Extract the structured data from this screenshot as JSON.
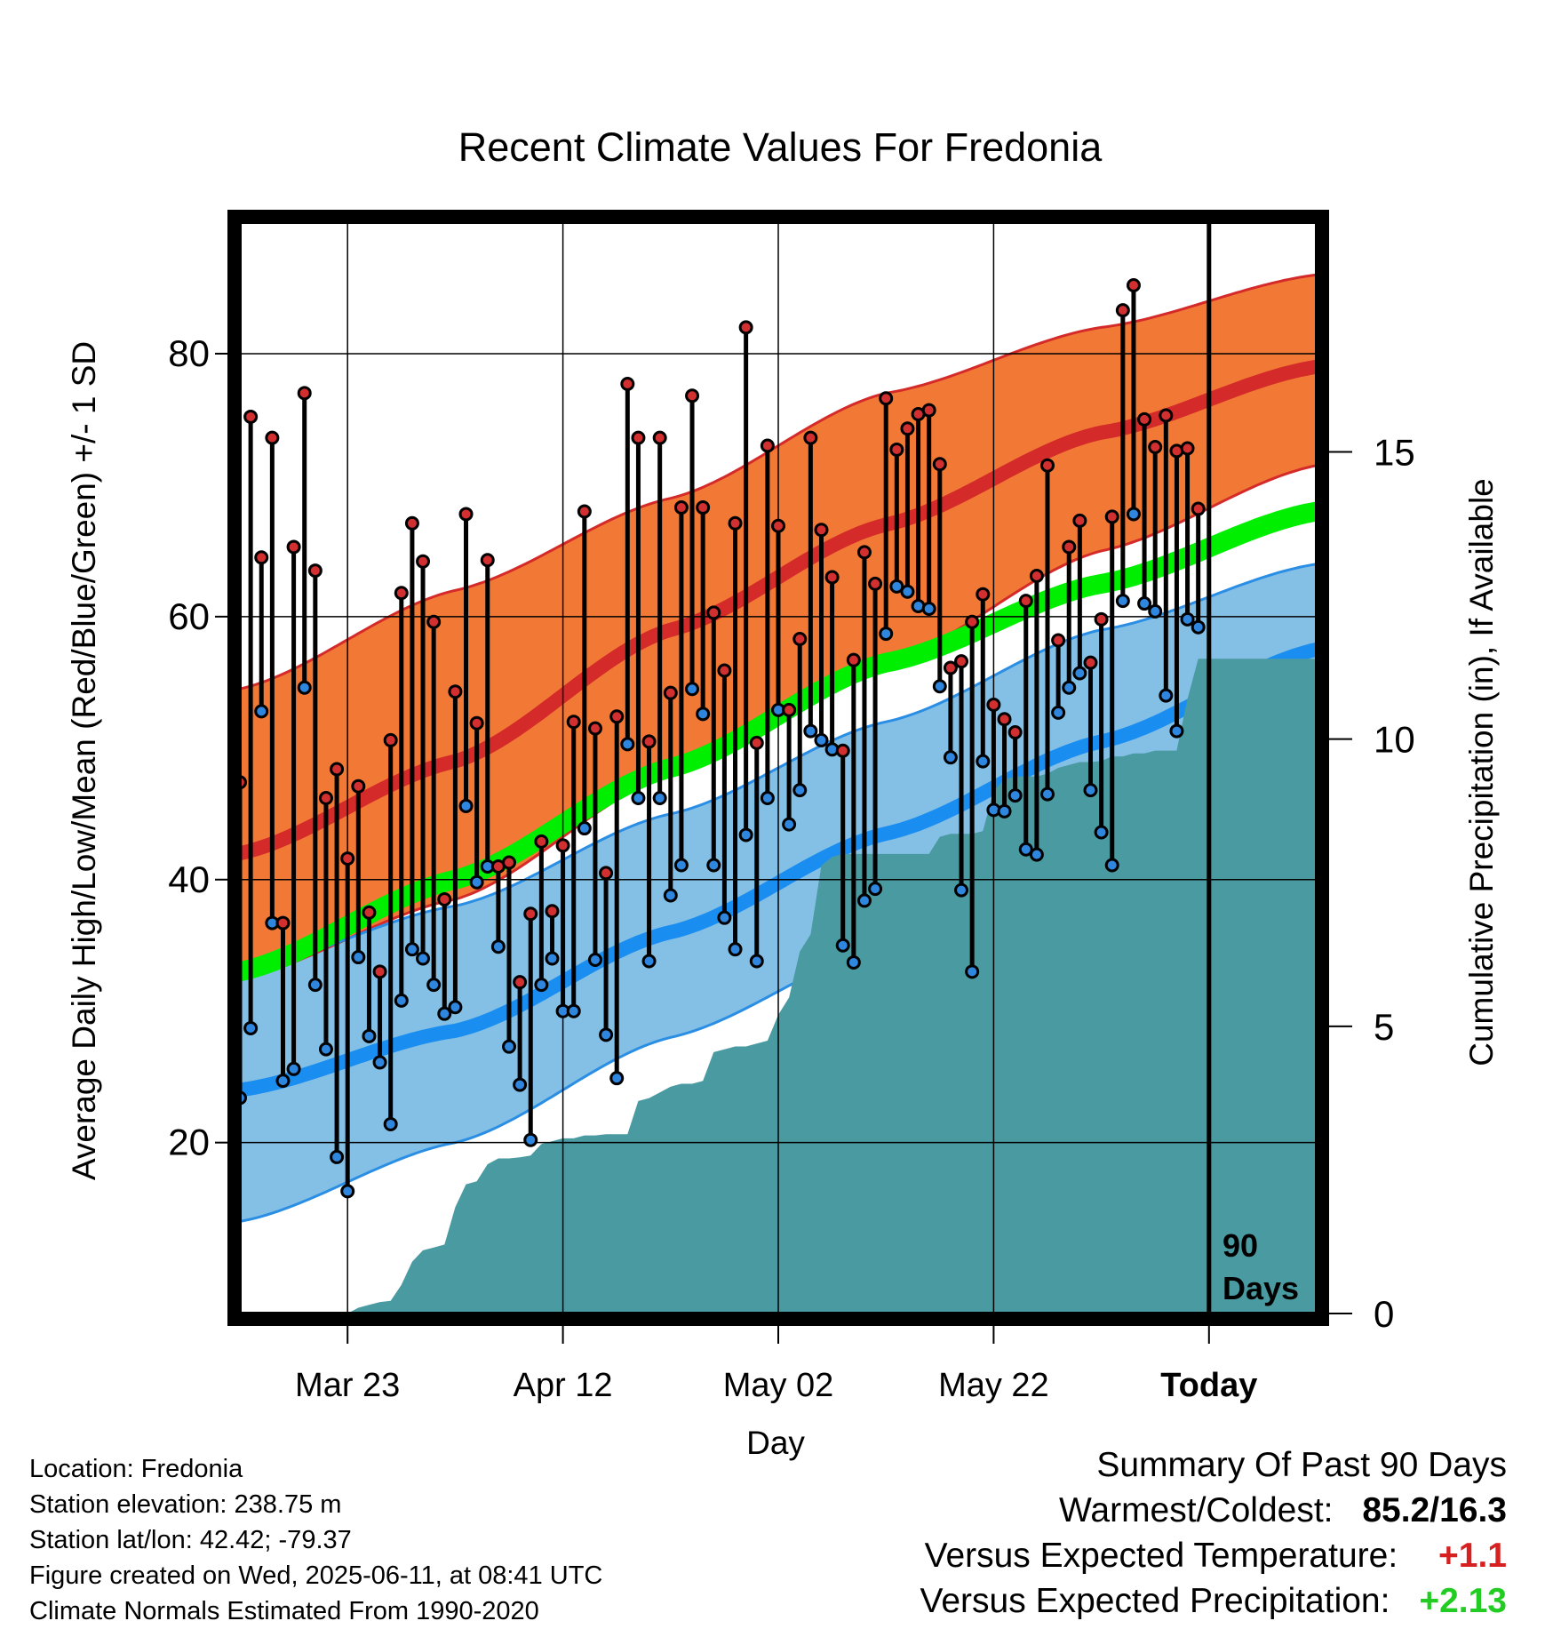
{
  "title": "Recent Climate Values For Fredonia",
  "y_label_left": "Average Daily High/Low/Mean (Red/Blue/Green) +/- 1 SD",
  "y_label_right": "Cumulative Precipitation (in), If Available",
  "x_label": "Day",
  "today_label": [
    "90",
    "Days"
  ],
  "colors": {
    "high_band": "#f27935",
    "high_band_edge": "#d52a2a",
    "high_mean": "#d42a2a",
    "low_band": "#84c0e6",
    "low_band_edge": "#2a8ee4",
    "low_mean": "#1a8ef0",
    "mean": "#00ee00",
    "overlap": "#9b1212",
    "precip": "#4a9aa2",
    "high_dot": "#d23030",
    "low_dot": "#2e86de"
  },
  "info": {
    "location": "Location: Fredonia",
    "elevation": "Station elevation: 238.75 m",
    "latlon": "Station lat/lon: 42.42; -79.37",
    "created": "Figure created on Wed, 2025-06-11, at 08:41 UTC",
    "normals": "Climate Normals Estimated From 1990-2020"
  },
  "summary": {
    "heading": "Summary Of Past 90 Days",
    "warm_cold_label": "Warmest/Coldest:",
    "warm_cold_value": "85.2/16.3",
    "temp_label": "Versus Expected Temperature:",
    "temp_value": "+1.1",
    "precip_label": "Versus Expected Precipitation:",
    "precip_value": "+2.13"
  },
  "chart_data": {
    "type": "line",
    "x_domain": [
      1,
      101
    ],
    "today_day": 91,
    "ylim_left": [
      7,
      90
    ],
    "ylim_right": [
      0,
      19
    ],
    "left_ticks": [
      20,
      40,
      60,
      80
    ],
    "right_ticks": [
      0,
      5,
      10,
      15
    ],
    "x_ticks": [
      {
        "day": 11,
        "label": "Mar 23"
      },
      {
        "day": 31,
        "label": "Apr 12"
      },
      {
        "day": 51,
        "label": "May 02"
      },
      {
        "day": 71,
        "label": "May 22"
      },
      {
        "day": 91,
        "label": "Today"
      }
    ],
    "normals": {
      "days": [
        1,
        21,
        41,
        61,
        81,
        101
      ],
      "high_upper": [
        54.5,
        62,
        69,
        77,
        82,
        86
      ],
      "high_mean": [
        42,
        49,
        59,
        67,
        74,
        79
      ],
      "high_lower": [
        32.5,
        38.5,
        48,
        56.5,
        65,
        71.5
      ],
      "mean": [
        33,
        40,
        48.5,
        56.5,
        62.5,
        68
      ],
      "low_upper": [
        33,
        38,
        45,
        52,
        59,
        64
      ],
      "low_mean": [
        24,
        28.5,
        36,
        43.5,
        50.5,
        57.5
      ],
      "low_lower": [
        14,
        20,
        28,
        35,
        41.5,
        51
      ]
    },
    "series": [
      {
        "name": "high",
        "values": [
          47.4,
          75.2,
          64.5,
          73.6,
          36.7,
          65.3,
          77.0,
          63.5,
          46.2,
          48.4,
          41.6,
          47.1,
          37.5,
          33.0,
          50.6,
          61.8,
          67.1,
          64.2,
          59.6,
          38.5,
          54.3,
          67.8,
          51.9,
          64.3,
          41.0,
          41.3,
          32.2,
          37.4,
          42.9,
          37.6,
          42.6,
          52.0,
          68.0,
          51.5,
          40.5,
          52.4,
          77.7,
          73.6,
          50.5,
          73.6,
          54.2,
          68.3,
          76.8,
          68.3,
          60.3,
          55.9,
          67.1,
          82.0,
          50.4,
          73.0,
          66.9,
          52.9,
          58.3,
          73.6,
          66.6,
          63.0,
          49.8,
          56.7,
          64.9,
          62.5,
          76.6,
          72.7,
          74.3,
          75.4,
          75.7,
          71.6,
          56.1,
          56.6,
          59.6,
          61.7,
          53.3,
          52.2,
          51.2,
          61.2,
          63.1,
          71.5,
          58.2,
          65.3,
          67.3,
          56.5,
          59.8,
          67.6,
          83.3,
          85.2,
          75.0,
          72.9,
          75.3,
          72.6,
          72.8,
          68.2
        ]
      },
      {
        "name": "low",
        "values": [
          23.4,
          28.7,
          52.8,
          36.7,
          24.7,
          25.6,
          54.6,
          32.0,
          27.1,
          18.9,
          16.3,
          34.1,
          28.1,
          26.1,
          21.4,
          30.8,
          34.7,
          34.0,
          32.0,
          29.8,
          30.3,
          45.6,
          39.8,
          41.0,
          34.9,
          27.3,
          24.4,
          20.2,
          32.0,
          34.0,
          30.0,
          30.0,
          43.9,
          33.9,
          28.2,
          24.9,
          50.3,
          46.2,
          33.8,
          46.2,
          38.8,
          41.1,
          54.5,
          52.6,
          41.1,
          37.1,
          34.7,
          43.4,
          33.8,
          46.2,
          52.9,
          44.2,
          46.8,
          51.3,
          50.6,
          49.9,
          35.0,
          33.7,
          38.4,
          39.3,
          58.7,
          62.3,
          61.9,
          60.8,
          60.6,
          54.7,
          49.3,
          39.2,
          33.0,
          49.0,
          45.3,
          45.2,
          46.4,
          42.3,
          41.9,
          46.5,
          52.7,
          54.6,
          55.7,
          46.8,
          43.6,
          41.1,
          61.2,
          67.8,
          61.0,
          60.4,
          54.0,
          51.3,
          59.8,
          59.2
        ]
      }
    ],
    "precip_cumulative": [
      0,
      0,
      0,
      0,
      0,
      0,
      0,
      0,
      0,
      0,
      0,
      0.1,
      0.15,
      0.2,
      0.22,
      0.5,
      0.9,
      1.1,
      1.15,
      1.2,
      1.85,
      2.25,
      2.3,
      2.6,
      2.7,
      2.7,
      2.72,
      2.75,
      2.95,
      3.0,
      3.05,
      3.05,
      3.1,
      3.1,
      3.12,
      3.12,
      3.12,
      3.7,
      3.75,
      3.85,
      3.95,
      4.0,
      4.0,
      4.05,
      4.55,
      4.6,
      4.65,
      4.65,
      4.7,
      4.75,
      5.2,
      5.5,
      6.3,
      6.6,
      7.8,
      7.95,
      8.0,
      8.0,
      8.0,
      8.0,
      8.0,
      8.0,
      8.0,
      8.0,
      8.0,
      8.3,
      8.35,
      8.35,
      8.35,
      8.4,
      9.1,
      9.3,
      9.35,
      9.35,
      9.35,
      9.4,
      9.5,
      9.55,
      9.6,
      9.6,
      9.62,
      9.7,
      9.7,
      9.75,
      9.75,
      9.8,
      9.8,
      9.8,
      10.7,
      11.4,
      11.4,
      11.4,
      11.4,
      11.4,
      11.4,
      11.4,
      11.4,
      11.4,
      11.4,
      11.4,
      11.4
    ]
  }
}
